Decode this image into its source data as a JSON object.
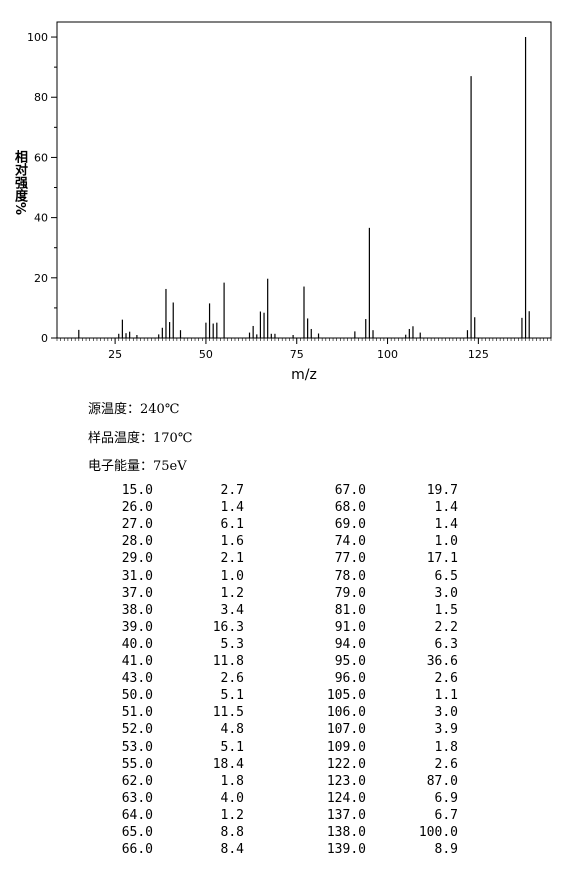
{
  "chart_data": {
    "type": "bar",
    "xlabel": "m/z",
    "ylabel": "相对强度%",
    "x": [
      15,
      26,
      27,
      28,
      29,
      31,
      37,
      38,
      39,
      40,
      41,
      43,
      50,
      51,
      52,
      53,
      55,
      62,
      63,
      64,
      65,
      66,
      67,
      68,
      69,
      74,
      77,
      78,
      79,
      81,
      91,
      94,
      95,
      96,
      105,
      106,
      107,
      109,
      122,
      123,
      124,
      137,
      138,
      139
    ],
    "values": [
      2.7,
      1.4,
      6.1,
      1.6,
      2.1,
      1.0,
      1.2,
      3.4,
      16.3,
      5.3,
      11.8,
      2.6,
      5.1,
      11.5,
      4.8,
      5.1,
      18.4,
      1.8,
      4.0,
      1.2,
      8.8,
      8.4,
      19.7,
      1.4,
      1.4,
      1.0,
      17.1,
      6.5,
      3.0,
      1.5,
      2.2,
      6.3,
      36.6,
      2.6,
      1.1,
      3.0,
      3.9,
      1.8,
      2.6,
      87.0,
      6.9,
      6.7,
      100.0,
      8.9
    ],
    "color": "#000000",
    "xlim": [
      9,
      145
    ],
    "ylim": [
      0,
      105
    ],
    "xticks": [
      25,
      50,
      75,
      100,
      125
    ],
    "yticks": [
      0,
      20,
      40,
      60,
      80,
      100
    ]
  },
  "conditions": [
    "源温度：240℃",
    "样品温度：170℃",
    "电子能量：75eV"
  ],
  "table": {
    "rows": [
      [
        "15.0",
        "2.7",
        "67.0",
        "19.7"
      ],
      [
        "26.0",
        "1.4",
        "68.0",
        "1.4"
      ],
      [
        "27.0",
        "6.1",
        "69.0",
        "1.4"
      ],
      [
        "28.0",
        "1.6",
        "74.0",
        "1.0"
      ],
      [
        "29.0",
        "2.1",
        "77.0",
        "17.1"
      ],
      [
        "31.0",
        "1.0",
        "78.0",
        "6.5"
      ],
      [
        "37.0",
        "1.2",
        "79.0",
        "3.0"
      ],
      [
        "38.0",
        "3.4",
        "81.0",
        "1.5"
      ],
      [
        "39.0",
        "16.3",
        "91.0",
        "2.2"
      ],
      [
        "40.0",
        "5.3",
        "94.0",
        "6.3"
      ],
      [
        "41.0",
        "11.8",
        "95.0",
        "36.6"
      ],
      [
        "43.0",
        "2.6",
        "96.0",
        "2.6"
      ],
      [
        "50.0",
        "5.1",
        "105.0",
        "1.1"
      ],
      [
        "51.0",
        "11.5",
        "106.0",
        "3.0"
      ],
      [
        "52.0",
        "4.8",
        "107.0",
        "3.9"
      ],
      [
        "53.0",
        "5.1",
        "109.0",
        "1.8"
      ],
      [
        "55.0",
        "18.4",
        "122.0",
        "2.6"
      ],
      [
        "62.0",
        "1.8",
        "123.0",
        "87.0"
      ],
      [
        "63.0",
        "4.0",
        "124.0",
        "6.9"
      ],
      [
        "64.0",
        "1.2",
        "137.0",
        "6.7"
      ],
      [
        "65.0",
        "8.8",
        "138.0",
        "100.0"
      ],
      [
        "66.0",
        "8.4",
        "139.0",
        "8.9"
      ]
    ]
  }
}
